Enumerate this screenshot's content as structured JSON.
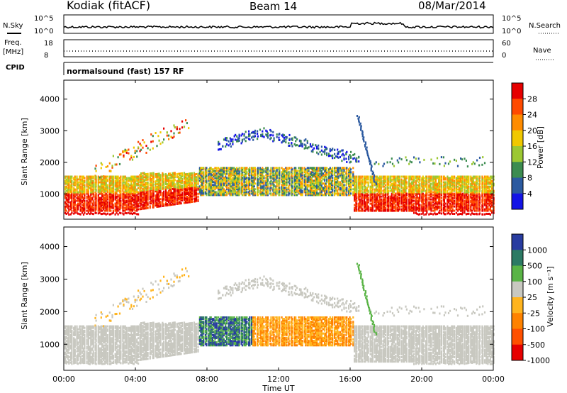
{
  "header": {
    "station": "Kodiak (fitACF)",
    "beam": "Beam 14",
    "date": "08/Mar/2014"
  },
  "noise_panel": {
    "left_label": "N.Sky",
    "left_ticks": [
      "10^5",
      "10^0"
    ],
    "right_ticks": [
      "10^5",
      "10^0"
    ],
    "right_label": "N.Search"
  },
  "freq_panel": {
    "left_label_1": "Freq.",
    "left_label_2": "[MHz]",
    "left_ticks": [
      "18",
      "8"
    ],
    "right_ticks": [
      "60",
      "0"
    ],
    "right_label": "Nave"
  },
  "cpid": {
    "label": "CPID",
    "value": "normalsound (fast) 157 RF"
  },
  "chart_data": [
    {
      "type": "heatmap",
      "panel": "power",
      "ylabel": "Slant Range [km]",
      "ylim": [
        200,
        4600
      ],
      "xlim": [
        0,
        24
      ],
      "yticks": [
        "1000",
        "2000",
        "3000",
        "4000"
      ],
      "colorbar": {
        "label": "Power [dB]",
        "ticks": [
          "28",
          "24",
          "20",
          "16",
          "12",
          "8",
          "4"
        ],
        "colors": [
          "#e60000",
          "#ff4a00",
          "#ff8c00",
          "#f0c800",
          "#9cc832",
          "#3c8c50",
          "#2c5aa0",
          "#1414e6"
        ]
      }
    },
    {
      "type": "heatmap",
      "panel": "velocity",
      "ylabel": "Slant Range [km]",
      "ylim": [
        200,
        4600
      ],
      "xlim": [
        0,
        24
      ],
      "yticks": [
        "1000",
        "2000",
        "3000",
        "4000"
      ],
      "xlabel": "Time UT",
      "xticks": [
        "00:00",
        "04:00",
        "08:00",
        "12:00",
        "16:00",
        "20:00",
        "00:00"
      ],
      "colorbar": {
        "label": "Velocity [m s⁻¹]",
        "ticks": [
          "1000",
          "500",
          "100",
          "25",
          "-25",
          "-100",
          "-500",
          "-1000"
        ],
        "colors": [
          "#283ca0",
          "#2c7a64",
          "#5ab446",
          "#c8c8c0",
          "#ffb41e",
          "#ff8200",
          "#ff5000",
          "#e60000"
        ]
      }
    }
  ]
}
